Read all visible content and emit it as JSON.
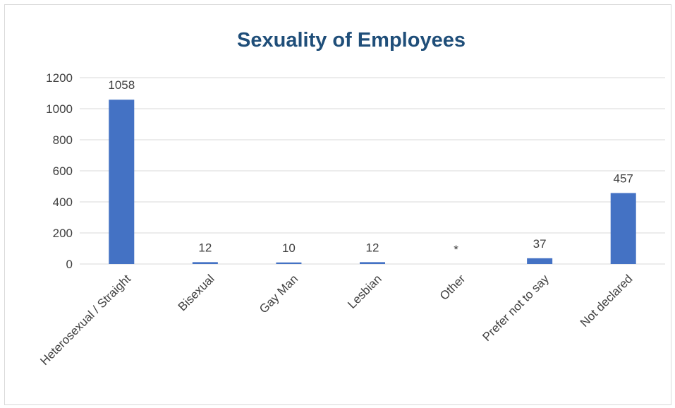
{
  "chart_data": {
    "type": "bar",
    "title": "Sexuality of Employees",
    "xlabel": "",
    "ylabel": "",
    "categories": [
      "Heterosexual / Straight",
      "Bisexual",
      "Gay Man",
      "Lesbian",
      "Other",
      "Prefer not to say",
      "Not declared"
    ],
    "values": [
      1058,
      12,
      10,
      12,
      null,
      37,
      457
    ],
    "data_labels": [
      "1058",
      "12",
      "10",
      "12",
      "*",
      "37",
      "457"
    ],
    "ylim": [
      0,
      1200
    ],
    "yticks": [
      0,
      200,
      400,
      600,
      800,
      1000,
      1200
    ],
    "grid": true,
    "legend": "none",
    "colors": {
      "bar": "#4472C4",
      "title": "#1F4E79",
      "grid": "#D9D9D9",
      "text": "#404040"
    }
  }
}
